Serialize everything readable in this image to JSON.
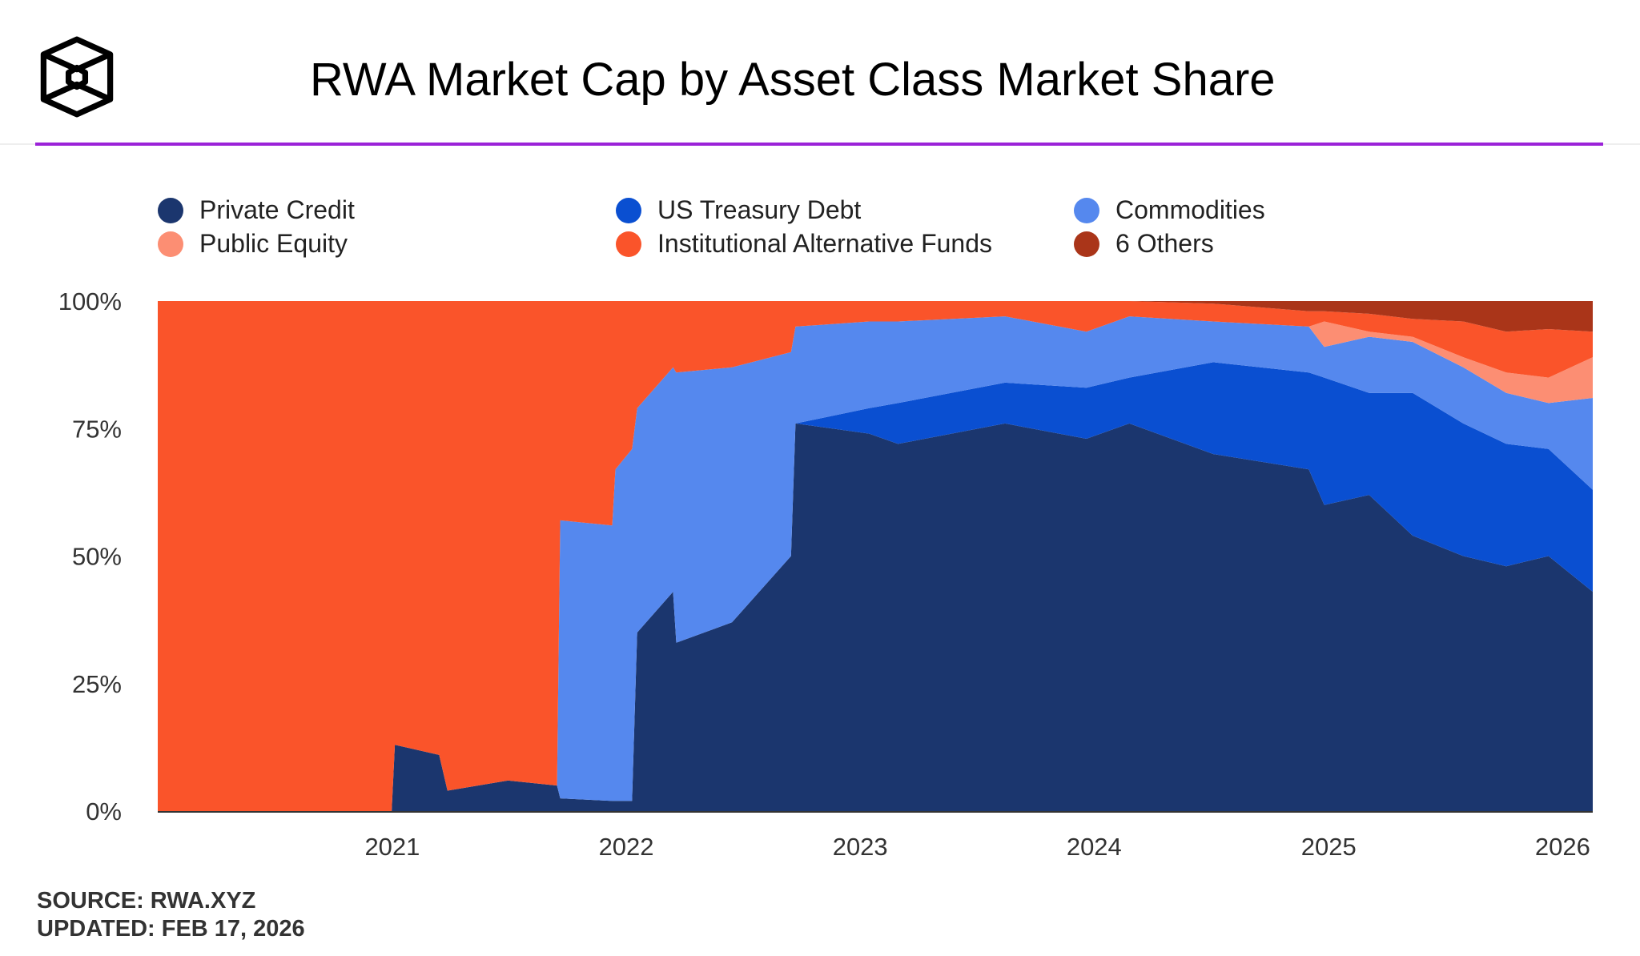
{
  "header": {
    "title": "RWA Market Cap by Asset Class Market Share",
    "logo": "cube-logo-icon"
  },
  "footer": {
    "source": "SOURCE: RWA.XYZ",
    "updated": "UPDATED: FEB 17, 2026"
  },
  "chart_data": {
    "type": "area",
    "stacked": true,
    "normalized": true,
    "title": "RWA Market Cap by Asset Class Market Share",
    "xlabel": "",
    "ylabel": "",
    "ylim": [
      0,
      100
    ],
    "y_ticks": [
      "0%",
      "25%",
      "50%",
      "75%",
      "100%"
    ],
    "y_tick_values": [
      0,
      25,
      50,
      75,
      100
    ],
    "x_ticks": [
      "2021",
      "2022",
      "2023",
      "2024",
      "2025",
      "2026"
    ],
    "xlim": [
      "2020-01-01",
      "2026-02-17"
    ],
    "grid": false,
    "legend_position": "top",
    "x": [
      "2020-01-01",
      "2020-12-31",
      "2021-01-05",
      "2021-03-15",
      "2021-03-28",
      "2021-07-01",
      "2021-09-15",
      "2021-09-20",
      "2021-12-10",
      "2021-12-15",
      "2022-01-10",
      "2022-01-18",
      "2022-03-15",
      "2022-03-20",
      "2022-06-15",
      "2022-09-15",
      "2022-09-22",
      "2023-01-15",
      "2023-03-01",
      "2023-08-15",
      "2023-12-20",
      "2024-02-25",
      "2024-07-05",
      "2024-12-01",
      "2024-12-25",
      "2025-03-05",
      "2025-05-12",
      "2025-07-30",
      "2025-10-05",
      "2025-12-10",
      "2026-02-17"
    ],
    "series": [
      {
        "name": "Private Credit",
        "color": "#1b366e",
        "values": [
          0,
          0,
          13,
          11,
          4,
          6,
          5,
          2.5,
          2,
          2,
          2,
          35,
          43,
          33,
          37,
          50,
          76,
          74,
          72,
          76,
          73,
          76,
          70,
          67,
          60,
          62,
          54,
          50,
          48,
          50,
          43
        ]
      },
      {
        "name": "US Treasury Debt",
        "color": "#0a4fd1",
        "values": [
          0,
          0,
          0,
          0,
          0,
          0,
          0,
          0,
          0,
          0,
          0,
          0,
          0,
          0,
          0,
          0,
          0,
          5,
          8,
          8,
          10,
          9,
          18,
          19,
          25,
          20,
          28,
          26,
          24,
          21,
          20
        ]
      },
      {
        "name": "Commodities",
        "color": "#5588ee",
        "values": [
          0,
          0,
          0,
          0,
          0,
          0,
          0,
          54.5,
          54,
          65,
          69,
          44,
          44,
          53,
          50,
          40,
          19,
          17,
          16,
          13,
          11,
          12,
          8,
          9,
          6,
          11,
          10,
          11,
          10,
          9,
          18
        ]
      },
      {
        "name": "Public Equity",
        "color": "#fc8e73",
        "values": [
          0,
          0,
          0,
          0,
          0,
          0,
          0,
          0,
          0,
          0,
          0,
          0,
          0,
          0,
          0,
          0,
          0,
          0,
          0,
          0,
          0,
          0,
          0,
          0,
          5,
          1,
          1,
          2,
          4,
          5,
          8
        ]
      },
      {
        "name": "Institutional Alternative Funds",
        "color": "#fa542a",
        "values": [
          100,
          100,
          87,
          89,
          96,
          94,
          95,
          43,
          44,
          33,
          29,
          21,
          13,
          14,
          13,
          10,
          5,
          4,
          4,
          3,
          6,
          3,
          3.5,
          3,
          2,
          3.5,
          3.5,
          7,
          8,
          9.5,
          5
        ]
      },
      {
        "name": "6 Others",
        "color": "#aa3519",
        "values": [
          0,
          0,
          0,
          0,
          0,
          0,
          0,
          0,
          0,
          0,
          0,
          0,
          0,
          0,
          0,
          0,
          0,
          0,
          0,
          0,
          0,
          0,
          0.5,
          2,
          2,
          2.5,
          3.5,
          4,
          6,
          5.5,
          6
        ]
      }
    ]
  }
}
